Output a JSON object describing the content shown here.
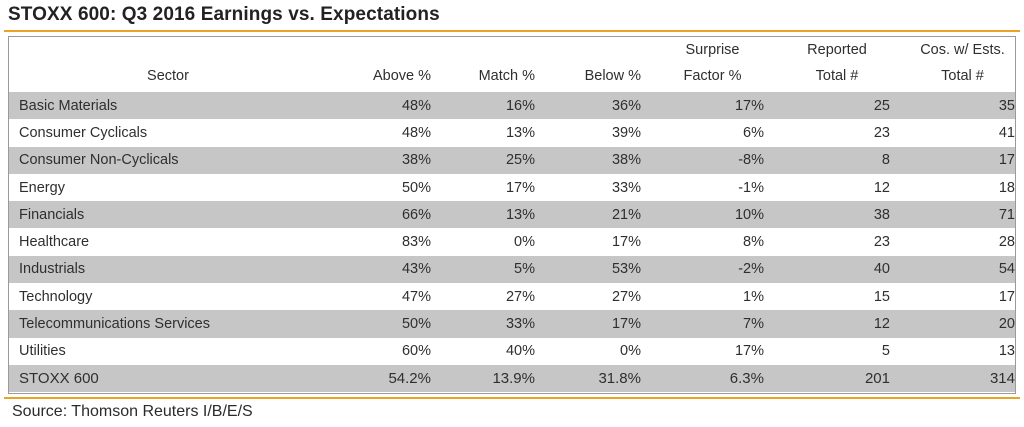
{
  "title": "STOXX 600: Q3 2016 Earnings vs. Expectations",
  "source": "Source: Thomson Reuters I/B/E/S",
  "colors": {
    "accent_rule": "#e8a328",
    "row_shade": "#c6c6c6",
    "frame": "#9a9a9a"
  },
  "columns": [
    {
      "l1": "",
      "l2": "Sector"
    },
    {
      "l1": "",
      "l2": "Above %"
    },
    {
      "l1": "",
      "l2": "Match %"
    },
    {
      "l1": "",
      "l2": "Below %"
    },
    {
      "l1": "Surprise",
      "l2": "Factor %"
    },
    {
      "l1": "Reported",
      "l2": "Total #"
    },
    {
      "l1": "Cos. w/ Ests.",
      "l2": "Total #"
    }
  ],
  "rows": [
    [
      "Basic Materials",
      "48%",
      "16%",
      "36%",
      "17%",
      "25",
      "35"
    ],
    [
      "Consumer Cyclicals",
      "48%",
      "13%",
      "39%",
      "6%",
      "23",
      "41"
    ],
    [
      "Consumer Non-Cyclicals",
      "38%",
      "25%",
      "38%",
      "-8%",
      "8",
      "17"
    ],
    [
      "Energy",
      "50%",
      "17%",
      "33%",
      "-1%",
      "12",
      "18"
    ],
    [
      "Financials",
      "66%",
      "13%",
      "21%",
      "10%",
      "38",
      "71"
    ],
    [
      "Healthcare",
      "83%",
      "0%",
      "17%",
      "8%",
      "23",
      "28"
    ],
    [
      "Industrials",
      "43%",
      "5%",
      "53%",
      "-2%",
      "40",
      "54"
    ],
    [
      "Technology",
      "47%",
      "27%",
      "27%",
      "1%",
      "15",
      "17"
    ],
    [
      "Telecommunications Services",
      "50%",
      "33%",
      "17%",
      "7%",
      "12",
      "20"
    ],
    [
      "Utilities",
      "60%",
      "40%",
      "0%",
      "17%",
      "5",
      "13"
    ],
    [
      "STOXX 600",
      "54.2%",
      "13.9%",
      "31.8%",
      "6.3%",
      "201",
      "314"
    ]
  ]
}
